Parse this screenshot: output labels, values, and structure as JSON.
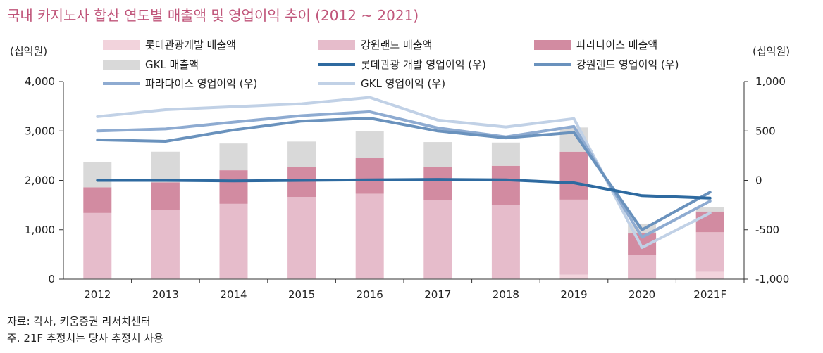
{
  "chart_data": {
    "type": "bar",
    "title": "국내 카지노사 합산 연도별 매출액 및 영업이익 추이 (2012 ~ 2021)",
    "ylabel_left": "(십억원)",
    "ylabel_right": "(십억원)",
    "categories": [
      "2012",
      "2013",
      "2014",
      "2015",
      "2016",
      "2017",
      "2018",
      "2019",
      "2020",
      "2021F"
    ],
    "ylim_left": [
      0,
      4000
    ],
    "ylim_right": [
      -1000,
      1000
    ],
    "yticks_left": [
      "4,000",
      "3,000",
      "2,000",
      "1,000",
      "0"
    ],
    "yticks_right": [
      "1,000",
      "500",
      "0",
      "-500",
      "-1,000"
    ],
    "legend_position": "top",
    "bar_series": [
      {
        "name": "롯데관광개발 매출액",
        "color": "#f2d3dc",
        "values": [
          25,
          25,
          25,
          25,
          25,
          25,
          25,
          90,
          15,
          150
        ]
      },
      {
        "name": "강원랜드 매출액",
        "color": "#e6bccb",
        "values": [
          1315,
          1375,
          1500,
          1640,
          1705,
          1580,
          1480,
          1520,
          480,
          800
        ]
      },
      {
        "name": "파라다이스 매출액",
        "color": "#d28ba1",
        "values": [
          520,
          560,
          680,
          610,
          720,
          670,
          790,
          970,
          430,
          420
        ]
      },
      {
        "name": "GKL 매출액",
        "color": "#d9d9d9",
        "values": [
          510,
          620,
          540,
          510,
          540,
          500,
          470,
          490,
          200,
          90
        ]
      }
    ],
    "line_series": [
      {
        "name": "롯데관광 개발 영업이익 (우)",
        "color": "#2e6aa0",
        "values": [
          0,
          0,
          -5,
          0,
          5,
          10,
          5,
          -25,
          -155,
          -180
        ]
      },
      {
        "name": "강원랜드 영업이익 (우)",
        "color": "#6a92bd",
        "values": [
          410,
          395,
          510,
          600,
          630,
          500,
          430,
          485,
          -500,
          -120
        ]
      },
      {
        "name": "파라다이스 영업이익 (우)",
        "color": "#8eabd1",
        "values": [
          500,
          520,
          590,
          655,
          695,
          530,
          440,
          545,
          -575,
          -210
        ]
      },
      {
        "name": "GKL 영업이익 (우)",
        "color": "#c1d1e6",
        "values": [
          645,
          715,
          745,
          775,
          840,
          610,
          540,
          625,
          -680,
          -330
        ]
      }
    ]
  },
  "footnotes": {
    "source": "자료: 각사, 키움증권 리서치센터",
    "note": "주. 21F 추정치는 당사 추정치 사용"
  }
}
